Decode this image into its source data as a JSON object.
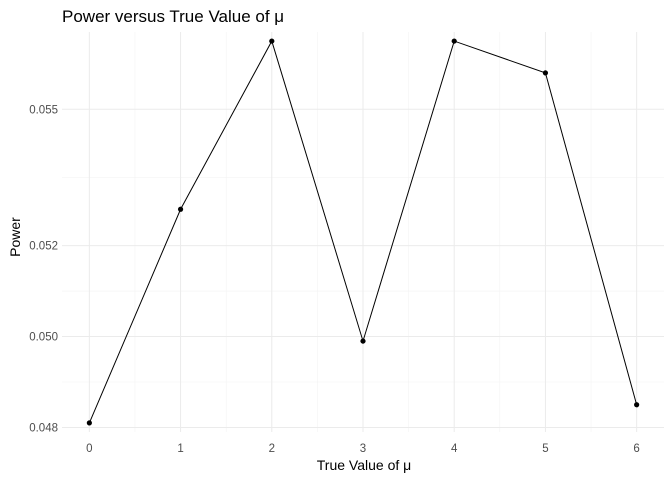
{
  "chart_data": {
    "type": "line",
    "title": "Power versus True Value of μ",
    "xlabel": "True Value of μ",
    "ylabel": "Power",
    "x": [
      0,
      1,
      2,
      3,
      4,
      5,
      6
    ],
    "values": [
      0.0481,
      0.0528,
      0.0565,
      0.0499,
      0.0565,
      0.0558,
      0.0485
    ],
    "xticks": [
      0,
      1,
      2,
      3,
      4,
      5,
      6
    ],
    "xtick_labels": [
      "0",
      "1",
      "2",
      "3",
      "4",
      "5",
      "6"
    ],
    "yticks": [
      0.048,
      0.05,
      0.052,
      0.055
    ],
    "ytick_labels": [
      "0.048",
      "0.050",
      "0.052",
      "0.055"
    ],
    "xlim": [
      -0.3,
      6.3
    ],
    "ylim": [
      0.0479,
      0.0567
    ],
    "grid": true,
    "legend": "none",
    "series_color": "#000000"
  }
}
